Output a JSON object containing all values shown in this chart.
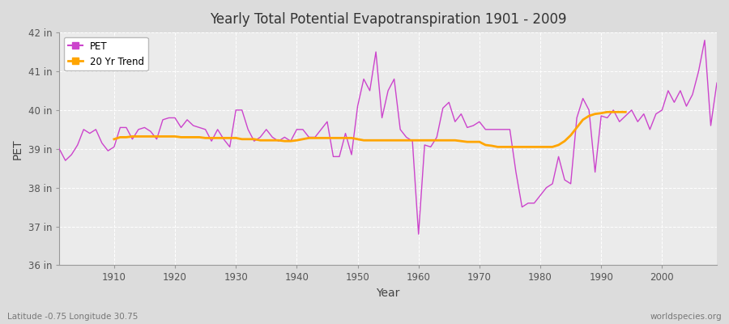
{
  "title": "Yearly Total Potential Evapotranspiration 1901 - 2009",
  "xlabel": "Year",
  "ylabel": "PET",
  "footnote_left": "Latitude -0.75 Longitude 30.75",
  "footnote_right": "worldspecies.org",
  "pet_color": "#CC44CC",
  "trend_color": "#FFA500",
  "fig_bg_color": "#DCDCDC",
  "plot_bg_color": "#EBEBEB",
  "ylim": [
    36,
    42
  ],
  "xlim": [
    1901,
    2009
  ],
  "years": [
    1901,
    1902,
    1903,
    1904,
    1905,
    1906,
    1907,
    1908,
    1909,
    1910,
    1911,
    1912,
    1913,
    1914,
    1915,
    1916,
    1917,
    1918,
    1919,
    1920,
    1921,
    1922,
    1923,
    1924,
    1925,
    1926,
    1927,
    1928,
    1929,
    1930,
    1931,
    1932,
    1933,
    1934,
    1935,
    1936,
    1937,
    1938,
    1939,
    1940,
    1941,
    1942,
    1943,
    1944,
    1945,
    1946,
    1947,
    1948,
    1949,
    1950,
    1951,
    1952,
    1953,
    1954,
    1955,
    1956,
    1957,
    1958,
    1959,
    1960,
    1961,
    1962,
    1963,
    1964,
    1965,
    1966,
    1967,
    1968,
    1969,
    1970,
    1971,
    1972,
    1973,
    1974,
    1975,
    1976,
    1977,
    1978,
    1979,
    1980,
    1981,
    1982,
    1983,
    1984,
    1985,
    1986,
    1987,
    1988,
    1989,
    1990,
    1991,
    1992,
    1993,
    1994,
    1995,
    1996,
    1997,
    1998,
    1999,
    2000,
    2001,
    2002,
    2003,
    2004,
    2005,
    2006,
    2007,
    2008,
    2009
  ],
  "pet": [
    39.0,
    38.7,
    38.85,
    39.1,
    39.5,
    39.4,
    39.5,
    39.15,
    38.95,
    39.05,
    39.55,
    39.55,
    39.25,
    39.5,
    39.55,
    39.45,
    39.25,
    39.75,
    39.8,
    39.8,
    39.55,
    39.75,
    39.6,
    39.55,
    39.5,
    39.2,
    39.5,
    39.25,
    39.05,
    40.0,
    40.0,
    39.5,
    39.2,
    39.3,
    39.5,
    39.3,
    39.2,
    39.3,
    39.2,
    39.5,
    39.5,
    39.3,
    39.3,
    39.5,
    39.7,
    38.8,
    38.8,
    39.4,
    38.85,
    40.1,
    40.8,
    40.5,
    41.5,
    39.8,
    40.5,
    40.8,
    39.5,
    39.3,
    39.2,
    36.8,
    39.1,
    39.05,
    39.3,
    40.05,
    40.2,
    39.7,
    39.9,
    39.55,
    39.6,
    39.7,
    39.5,
    39.5,
    39.5,
    39.5,
    39.5,
    38.4,
    37.5,
    37.6,
    37.6,
    37.8,
    38.0,
    38.1,
    38.8,
    38.2,
    38.1,
    39.8,
    40.3,
    40.0,
    38.4,
    39.85,
    39.8,
    40.0,
    39.7,
    39.85,
    40.0,
    39.7,
    39.9,
    39.5,
    39.9,
    40.0,
    40.5,
    40.2,
    40.5,
    40.1,
    40.4,
    41.0,
    41.8,
    39.6,
    40.7
  ],
  "trend": [
    null,
    null,
    null,
    null,
    null,
    null,
    null,
    null,
    null,
    39.25,
    39.3,
    39.3,
    39.32,
    39.32,
    39.32,
    39.32,
    39.32,
    39.32,
    39.32,
    39.32,
    39.3,
    39.3,
    39.3,
    39.3,
    39.28,
    39.28,
    39.28,
    39.28,
    39.28,
    39.28,
    39.25,
    39.25,
    39.25,
    39.22,
    39.22,
    39.22,
    39.22,
    39.2,
    39.2,
    39.22,
    39.25,
    39.28,
    39.28,
    39.28,
    39.28,
    39.28,
    39.28,
    39.28,
    39.28,
    39.25,
    39.22,
    39.22,
    39.22,
    39.22,
    39.22,
    39.22,
    39.22,
    39.22,
    39.22,
    39.22,
    39.22,
    39.22,
    39.22,
    39.22,
    39.22,
    39.22,
    39.2,
    39.18,
    39.18,
    39.18,
    39.1,
    39.08,
    39.05,
    39.05,
    39.05,
    39.05,
    39.05,
    39.05,
    39.05,
    39.05,
    39.05,
    39.05,
    39.1,
    39.2,
    39.35,
    39.55,
    39.75,
    39.85,
    39.9,
    39.92,
    39.95,
    39.95,
    39.95,
    39.95,
    null,
    null,
    null,
    null,
    null,
    null,
    null,
    null,
    null
  ]
}
